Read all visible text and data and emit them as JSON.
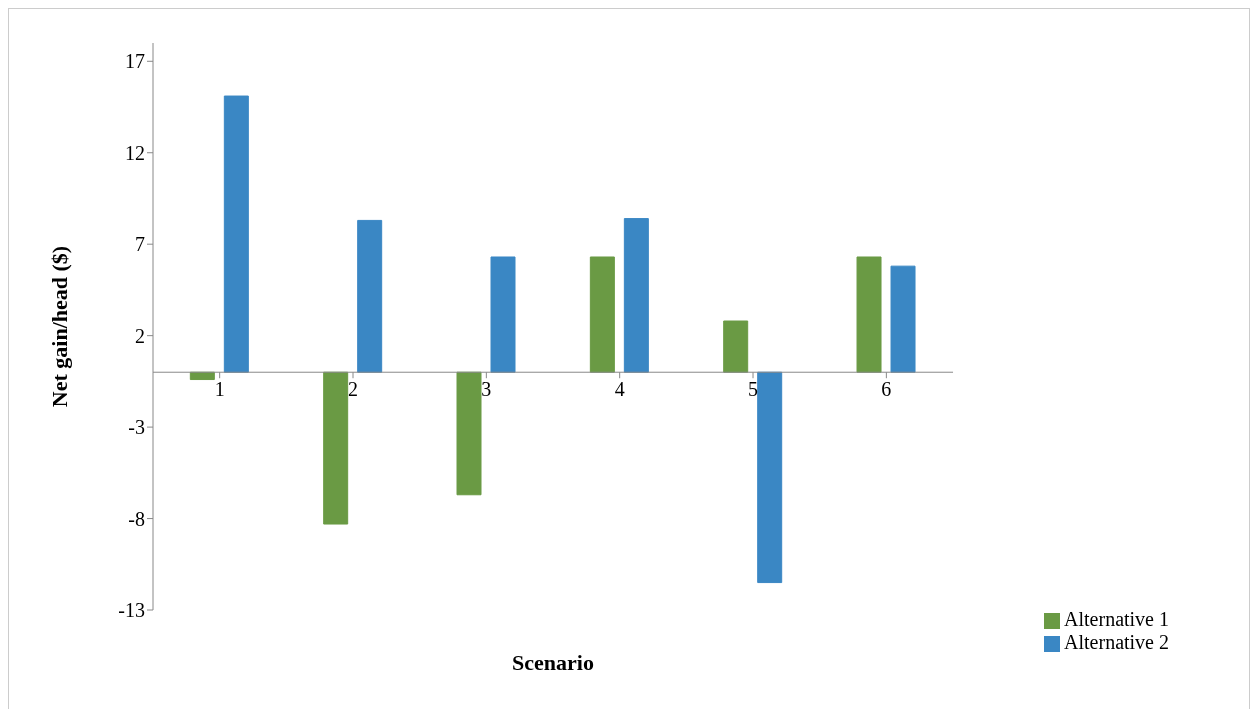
{
  "chart_data": {
    "type": "bar",
    "xlabel": "Scenario",
    "ylabel": "Net gain/head ($)",
    "categories": [
      "1",
      "2",
      "3",
      "4",
      "5",
      "6"
    ],
    "series": [
      {
        "name": "Alternative 1",
        "color": "#6a9a44",
        "values": [
          -0.4,
          -8.3,
          -6.7,
          6.3,
          2.8,
          6.3
        ]
      },
      {
        "name": "Alternative 2",
        "color": "#3a87c4",
        "values": [
          15.1,
          8.3,
          6.3,
          8.4,
          -11.5,
          5.8
        ]
      }
    ],
    "ylim": [
      -13,
      18
    ],
    "yticks": [
      -13,
      -8,
      -3,
      2,
      7,
      12,
      17
    ],
    "grid": false,
    "legend": "right"
  }
}
